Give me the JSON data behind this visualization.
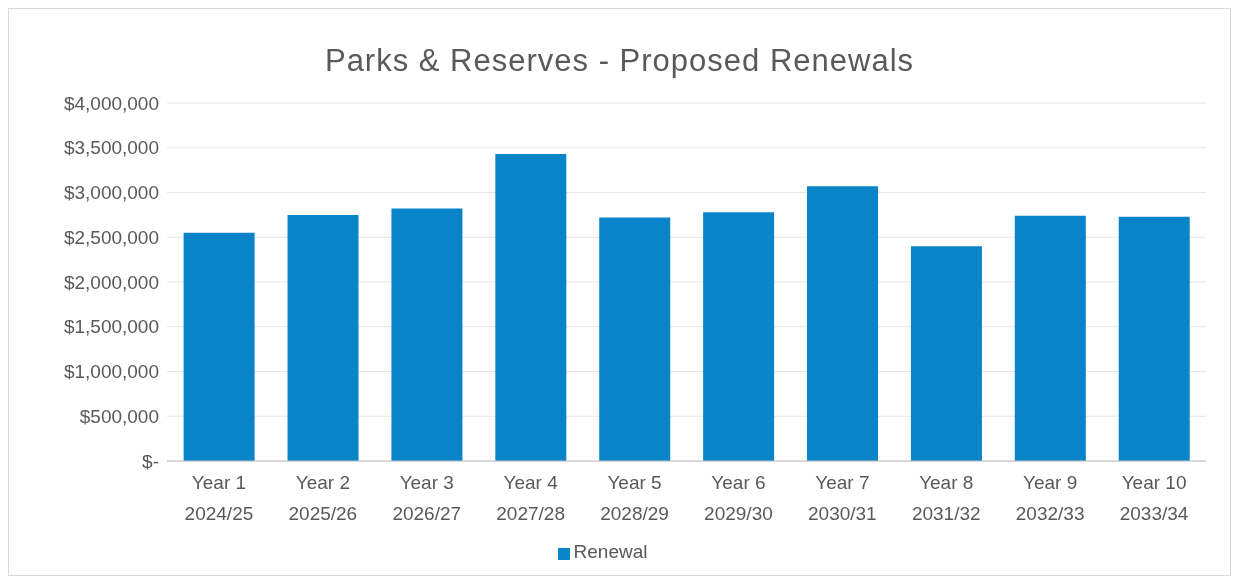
{
  "chart_data": {
    "type": "bar",
    "title": "Parks & Reserves - Proposed Renewals",
    "categories": [
      "Year 1\n2024/25",
      "Year 2\n2025/26",
      "Year 3\n2026/27",
      "Year 4\n2027/28",
      "Year 5\n2028/29",
      "Year 6\n2029/30",
      "Year 7\n2030/31",
      "Year 8\n2031/32",
      "Year 9\n2032/33",
      "Year 10\n2033/34"
    ],
    "series": [
      {
        "name": "Renewal",
        "color": "#0a84c9",
        "values": [
          2550000,
          2750000,
          2820000,
          3430000,
          2720000,
          2780000,
          3070000,
          2400000,
          2740000,
          2730000
        ]
      }
    ],
    "ylim": [
      0,
      4000000
    ],
    "yticks": [
      {
        "value": 0,
        "label": "$-"
      },
      {
        "value": 500000,
        "label": "$500,000"
      },
      {
        "value": 1000000,
        "label": "$1,000,000"
      },
      {
        "value": 1500000,
        "label": "$1,500,000"
      },
      {
        "value": 2000000,
        "label": "$2,000,000"
      },
      {
        "value": 2500000,
        "label": "$2,500,000"
      },
      {
        "value": 3000000,
        "label": "$3,000,000"
      },
      {
        "value": 3500000,
        "label": "$3,500,000"
      },
      {
        "value": 4000000,
        "label": "$4,000,000"
      }
    ],
    "grid": "y",
    "legend": "bottom"
  }
}
